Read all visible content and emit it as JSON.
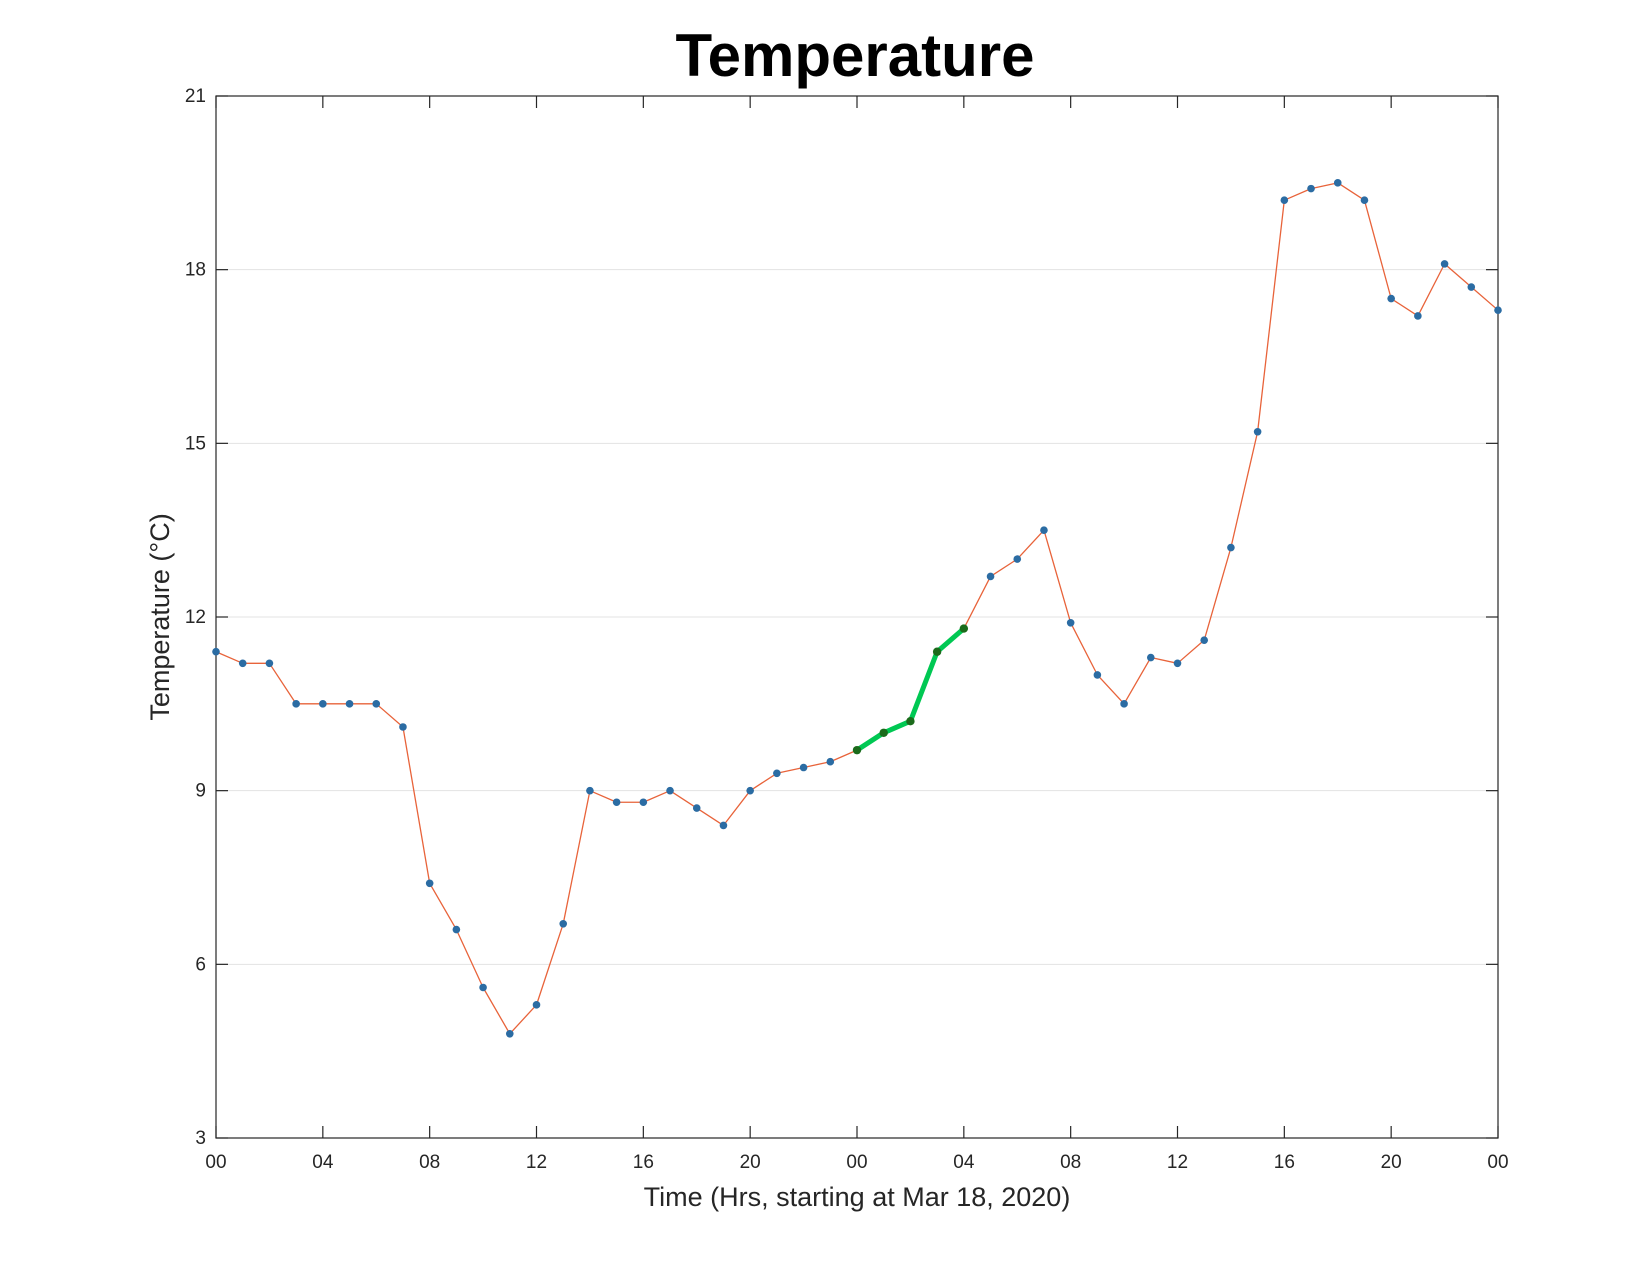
{
  "chart_data": {
    "type": "line",
    "title": "Temperature",
    "xlabel": "Time (Hrs, starting at Mar 18, 2020)",
    "ylabel": "Temperature (°C)",
    "x_unit": "hours",
    "xlim": [
      0,
      48
    ],
    "ylim": [
      3,
      21
    ],
    "yticks": [
      3,
      6,
      9,
      12,
      15,
      18,
      21
    ],
    "xtick_values": [
      0,
      4,
      8,
      12,
      16,
      20,
      24,
      28,
      32,
      36,
      40,
      44,
      48
    ],
    "xtick_labels": [
      "00",
      "04",
      "08",
      "12",
      "16",
      "20",
      "00",
      "04",
      "08",
      "12",
      "16",
      "20",
      "00"
    ],
    "grid": "horizontal",
    "series": [
      {
        "line_color": "#e8633a",
        "marker_color": "#2b6ca3",
        "x": [
          0,
          1,
          2,
          3,
          4,
          5,
          6,
          7,
          8,
          9,
          10,
          11,
          12,
          13,
          14,
          15,
          16,
          17,
          18,
          19,
          20,
          21,
          22,
          23,
          24,
          25,
          26,
          27,
          28,
          29,
          30,
          31,
          32,
          33,
          34,
          35,
          36,
          37,
          38,
          39,
          40,
          41,
          42,
          43,
          44,
          45,
          46,
          47,
          48
        ],
        "values": [
          11.4,
          11.2,
          11.2,
          10.5,
          10.5,
          10.5,
          10.5,
          10.1,
          7.4,
          6.6,
          5.6,
          4.8,
          5.3,
          6.7,
          9.0,
          8.8,
          8.8,
          9.0,
          8.7,
          8.4,
          9.0,
          9.3,
          9.4,
          9.5,
          9.7,
          10.0,
          10.2,
          11.4,
          11.8,
          12.7,
          13.0,
          13.5,
          11.9,
          11.0,
          10.5,
          11.3,
          11.2,
          11.6,
          13.2,
          15.2,
          19.2,
          19.4,
          19.5,
          19.2,
          17.5,
          17.2,
          18.1,
          17.7,
          17.3
        ]
      },
      {
        "line_color": "#00c853",
        "marker_color": "#1b6b1b",
        "x": [
          24,
          25,
          26,
          27,
          28
        ],
        "values": [
          9.7,
          10.0,
          10.2,
          11.4,
          11.8
        ]
      }
    ]
  }
}
